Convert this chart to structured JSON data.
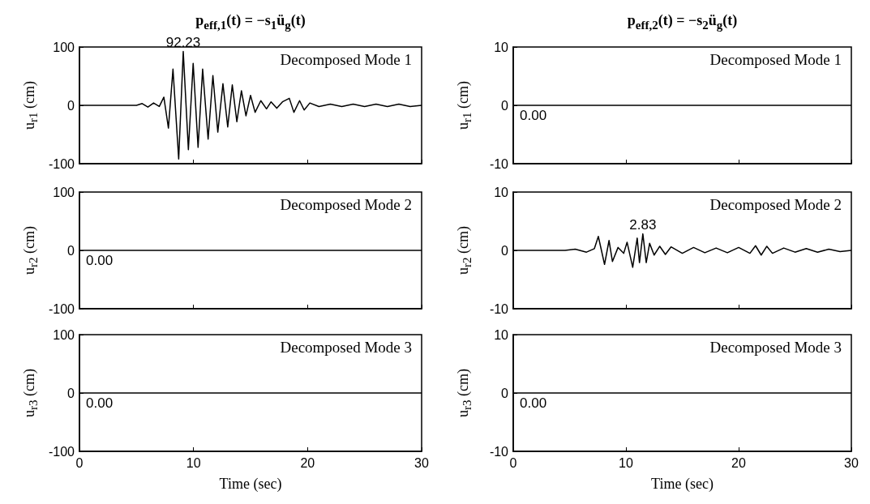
{
  "chart_data": [
    {
      "type": "line",
      "title": "p$_{eff,1}$(t) = −s$_{1}$ü$_{g}$(t)",
      "ylabel": "u$_{r1}$ (cm)",
      "annotations": [
        "Decomposed Mode 1",
        {
          "text": "92.23",
          "x": 9.1,
          "y": 92.23
        }
      ],
      "x": [
        0,
        5,
        5.5,
        6,
        6.5,
        7,
        7.4,
        7.8,
        8.2,
        8.7,
        9.1,
        9.55,
        9.97,
        10.4,
        10.8,
        11.28,
        11.7,
        12.13,
        12.58,
        13.0,
        13.4,
        13.8,
        14.2,
        14.6,
        15.0,
        15.4,
        15.9,
        16.4,
        16.8,
        17.3,
        17.8,
        18.4,
        18.8,
        19.3,
        19.7,
        20.2,
        21,
        22,
        23,
        24,
        25,
        26,
        27,
        28,
        29,
        30
      ],
      "series": [
        {
          "color": "#000000",
          "values": [
            0,
            0,
            3,
            -3,
            4,
            -2,
            14,
            -39,
            62,
            -92,
            92.23,
            -76,
            72,
            -72,
            62,
            -58,
            51,
            -46,
            37,
            -37,
            35,
            -28,
            25,
            -18,
            17,
            -12,
            8,
            -6,
            6,
            -5,
            6,
            12,
            -12,
            8,
            -8,
            4,
            -2,
            2,
            -2,
            2,
            -2,
            2,
            -2,
            2,
            -2,
            0
          ]
        }
      ],
      "xlim": [
        0,
        30
      ],
      "xticks": [
        0,
        10,
        20,
        30
      ],
      "ylim": [
        -100,
        100
      ],
      "yticks": [
        -100,
        0,
        100
      ],
      "tick_labels": "y",
      "marker": "none"
    },
    {
      "type": "line",
      "title": "p$_{eff,2}$(t) = −s$_{2}$ü$_{g}$(t)",
      "ylabel": "u$_{r1}$ (cm)",
      "annotations": [
        "Decomposed Mode 1",
        {
          "text": "0.00",
          "x": 0,
          "y": 0
        }
      ],
      "x": [
        0,
        30
      ],
      "series": [
        {
          "color": "#000000",
          "values": [
            0,
            0
          ]
        }
      ],
      "xlim": [
        0,
        30
      ],
      "xticks": [
        0,
        10,
        20,
        30
      ],
      "ylim": [
        -10,
        10
      ],
      "yticks": [
        -10,
        0,
        10
      ],
      "tick_labels": "y",
      "marker": "none"
    },
    {
      "type": "line",
      "ylabel": "u$_{r2}$ (cm)",
      "annotations": [
        "Decomposed Mode 2",
        {
          "text": "0.00",
          "x": 0,
          "y": 0
        }
      ],
      "x": [
        0,
        30
      ],
      "series": [
        {
          "color": "#000000",
          "values": [
            0,
            0
          ]
        }
      ],
      "xlim": [
        0,
        30
      ],
      "xticks": [
        0,
        10,
        20,
        30
      ],
      "ylim": [
        -100,
        100
      ],
      "yticks": [
        -100,
        0,
        100
      ],
      "tick_labels": "y",
      "marker": "none"
    },
    {
      "type": "line",
      "ylabel": "u$_{r2}$ (cm)",
      "annotations": [
        "Decomposed Mode 2",
        {
          "text": "2.83",
          "x": 11.5,
          "y": 2.83
        }
      ],
      "x": [
        0,
        4.6,
        5.5,
        6.5,
        7.2,
        7.55,
        8.1,
        8.5,
        8.8,
        9.3,
        9.8,
        10.1,
        10.6,
        11.0,
        11.2,
        11.5,
        11.8,
        12.1,
        12.5,
        13,
        13.5,
        14,
        15,
        16,
        17,
        18,
        19,
        20,
        21,
        21.5,
        22,
        22.5,
        23,
        24,
        25,
        26,
        27,
        28,
        29,
        30
      ],
      "series": [
        {
          "color": "#000000",
          "values": [
            0,
            0,
            0.2,
            -0.3,
            0.3,
            2.4,
            -2.4,
            1.7,
            -1.9,
            0.5,
            -0.5,
            1.4,
            -2.9,
            2.1,
            -2.1,
            2.83,
            -2.1,
            1.2,
            -0.8,
            0.7,
            -0.7,
            0.6,
            -0.5,
            0.5,
            -0.4,
            0.4,
            -0.4,
            0.5,
            -0.5,
            0.8,
            -0.8,
            0.7,
            -0.5,
            0.4,
            -0.3,
            0.3,
            -0.3,
            0.2,
            -0.2,
            0
          ]
        }
      ],
      "xlim": [
        0,
        30
      ],
      "xticks": [
        0,
        10,
        20,
        30
      ],
      "ylim": [
        -10,
        10
      ],
      "yticks": [
        -10,
        0,
        10
      ],
      "tick_labels": "y",
      "marker": "none"
    },
    {
      "type": "line",
      "xlabel": "Time (sec)",
      "ylabel": "u$_{r3}$ (cm)",
      "annotations": [
        "Decomposed Mode 3",
        {
          "text": "0.00",
          "x": 0,
          "y": 0
        }
      ],
      "x": [
        0,
        30
      ],
      "series": [
        {
          "color": "#000000",
          "values": [
            0,
            0
          ]
        }
      ],
      "xlim": [
        0,
        30
      ],
      "xticks": [
        0,
        10,
        20,
        30
      ],
      "ylim": [
        -100,
        100
      ],
      "yticks": [
        -100,
        0,
        100
      ],
      "marker": "none"
    },
    {
      "type": "line",
      "xlabel": "Time (sec)",
      "ylabel": "u$_{r3}$ (cm)",
      "annotations": [
        "Decomposed Mode 3",
        {
          "text": "0.00",
          "x": 0,
          "y": 0
        }
      ],
      "x": [
        0,
        30
      ],
      "series": [
        {
          "color": "#000000",
          "values": [
            0,
            0
          ]
        }
      ],
      "xlim": [
        0,
        30
      ],
      "xticks": [
        0,
        10,
        20,
        30
      ],
      "ylim": [
        -10,
        10
      ],
      "yticks": [
        -10,
        0,
        10
      ],
      "marker": "none"
    }
  ]
}
